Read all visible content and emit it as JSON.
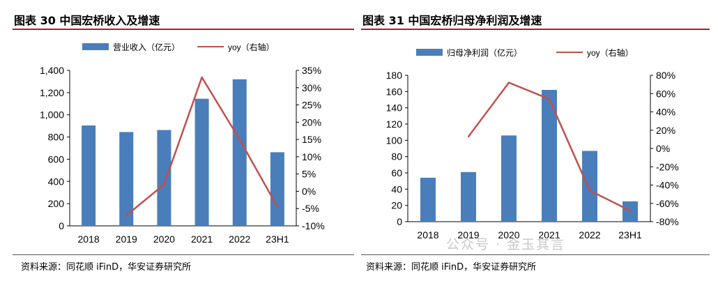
{
  "left_panel": {
    "title": "图表 30  中国宏桥收入及增速",
    "source": "资料来源：同花顺 iFinD，华安证券研究所"
  },
  "right_panel": {
    "title": "图表 31  中国宏桥归母净利润及增速",
    "source": "资料来源：同花顺 iFinD，华安证券研究所"
  },
  "watermark": "公众号 · 金玉其言",
  "colors": {
    "bar": "#4a7ebb",
    "line": "#c0504d",
    "title_rule": "#b11c1c"
  },
  "chart_data": [
    {
      "type": "bar",
      "categories": [
        "2018",
        "2019",
        "2020",
        "2021",
        "2022",
        "23H1"
      ],
      "series": [
        {
          "name": "营业收入（亿元）",
          "axis": "left",
          "kind": "bar",
          "values": [
            904,
            845,
            863,
            1145,
            1320,
            663
          ]
        },
        {
          "name": "yoy（右轴）",
          "axis": "right",
          "kind": "line",
          "values": [
            null,
            -7,
            2,
            33,
            15,
            -4.5
          ]
        }
      ],
      "y_left": {
        "min": 0,
        "max": 1400,
        "ticks": [
          "0",
          "200",
          "400",
          "600",
          "800",
          "1,000",
          "1,200",
          "1,400"
        ]
      },
      "y_right": {
        "min": -10,
        "max": 35,
        "ticks": [
          "-10%",
          "-5%",
          "0%",
          "5%",
          "10%",
          "15%",
          "20%",
          "25%",
          "30%",
          "35%"
        ]
      },
      "legend": "top"
    },
    {
      "type": "bar",
      "categories": [
        "2018",
        "2019",
        "2020",
        "2021",
        "2022",
        "23H1"
      ],
      "series": [
        {
          "name": "归母净利润（亿元）",
          "axis": "left",
          "kind": "bar",
          "values": [
            54,
            61,
            106,
            162,
            87,
            25
          ]
        },
        {
          "name": "yoy（右轴）",
          "axis": "right",
          "kind": "line",
          "values": [
            null,
            13,
            72,
            54,
            -46,
            -68
          ]
        }
      ],
      "y_left": {
        "min": 0,
        "max": 180,
        "ticks": [
          "0",
          "20",
          "40",
          "60",
          "80",
          "100",
          "120",
          "140",
          "160",
          "180"
        ]
      },
      "y_right": {
        "min": -80,
        "max": 80,
        "ticks": [
          "-80%",
          "-60%",
          "-40%",
          "-20%",
          "0%",
          "20%",
          "40%",
          "60%",
          "80%"
        ]
      },
      "legend": "top"
    }
  ]
}
